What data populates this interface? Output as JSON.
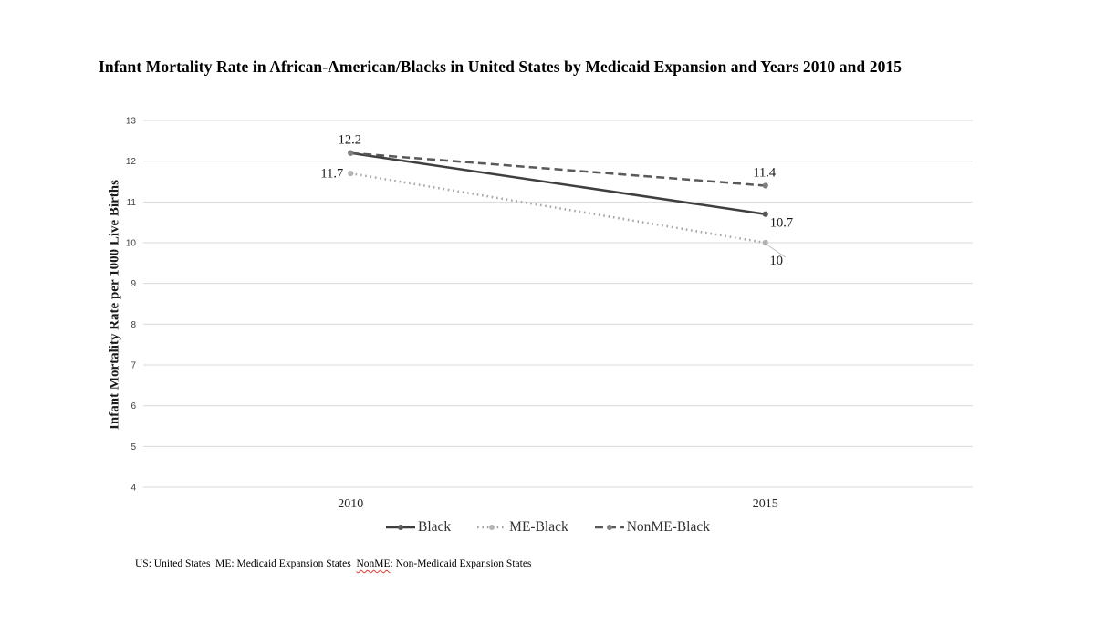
{
  "title": "Infant Mortality Rate in African-American/Blacks in United States by Medicaid Expansion and Years 2010 and 2015",
  "y_axis_label": "Infant Mortality Rate per 1000 Live Births",
  "footnote": {
    "part1": "US: United States  ME: Medicaid Expansion States  ",
    "highlighted": "NonME",
    "part2": ": Non-Medicaid Expansion States"
  },
  "colors": {
    "gridline": "#d9d9d9",
    "tick_label": "#404040",
    "x_label": "#262626",
    "data_label": "#1a1a1a",
    "leader_line": "#bfbfbf",
    "legend_text": "#333333"
  },
  "chart_data": {
    "type": "line",
    "title": "Infant Mortality Rate in African-American/Blacks in United States by Medicaid Expansion and Years 2010 and 2015",
    "xlabel": "",
    "ylabel": "Infant Mortality Rate per 1000 Live Births",
    "categories": [
      "2010",
      "2015"
    ],
    "series": [
      {
        "name": "Black",
        "values": [
          12.2,
          10.7
        ],
        "style": "solid",
        "color": "#3f3f3f",
        "marker_color": "#595959",
        "labels": [
          {
            "text": "12.2",
            "pos": "above"
          },
          {
            "text": "10.7",
            "pos": "right-below"
          }
        ]
      },
      {
        "name": "ME-Black",
        "values": [
          11.7,
          10
        ],
        "style": "dotted",
        "color": "#a6a6a6",
        "marker_color": "#b3b3b3",
        "labels": [
          {
            "text": "11.7",
            "pos": "left"
          },
          {
            "text": "10",
            "pos": "below-leader"
          }
        ]
      },
      {
        "name": "NonME-Black",
        "values": [
          12.2,
          11.4
        ],
        "style": "dashed",
        "color": "#595959",
        "marker_color": "#7f7f7f",
        "labels": [
          {
            "text": "",
            "pos": "none"
          },
          {
            "text": "11.4",
            "pos": "above"
          }
        ]
      }
    ],
    "ylim": [
      4,
      13
    ],
    "y_tick_step": 1,
    "grid": true,
    "legend_position": "bottom"
  }
}
